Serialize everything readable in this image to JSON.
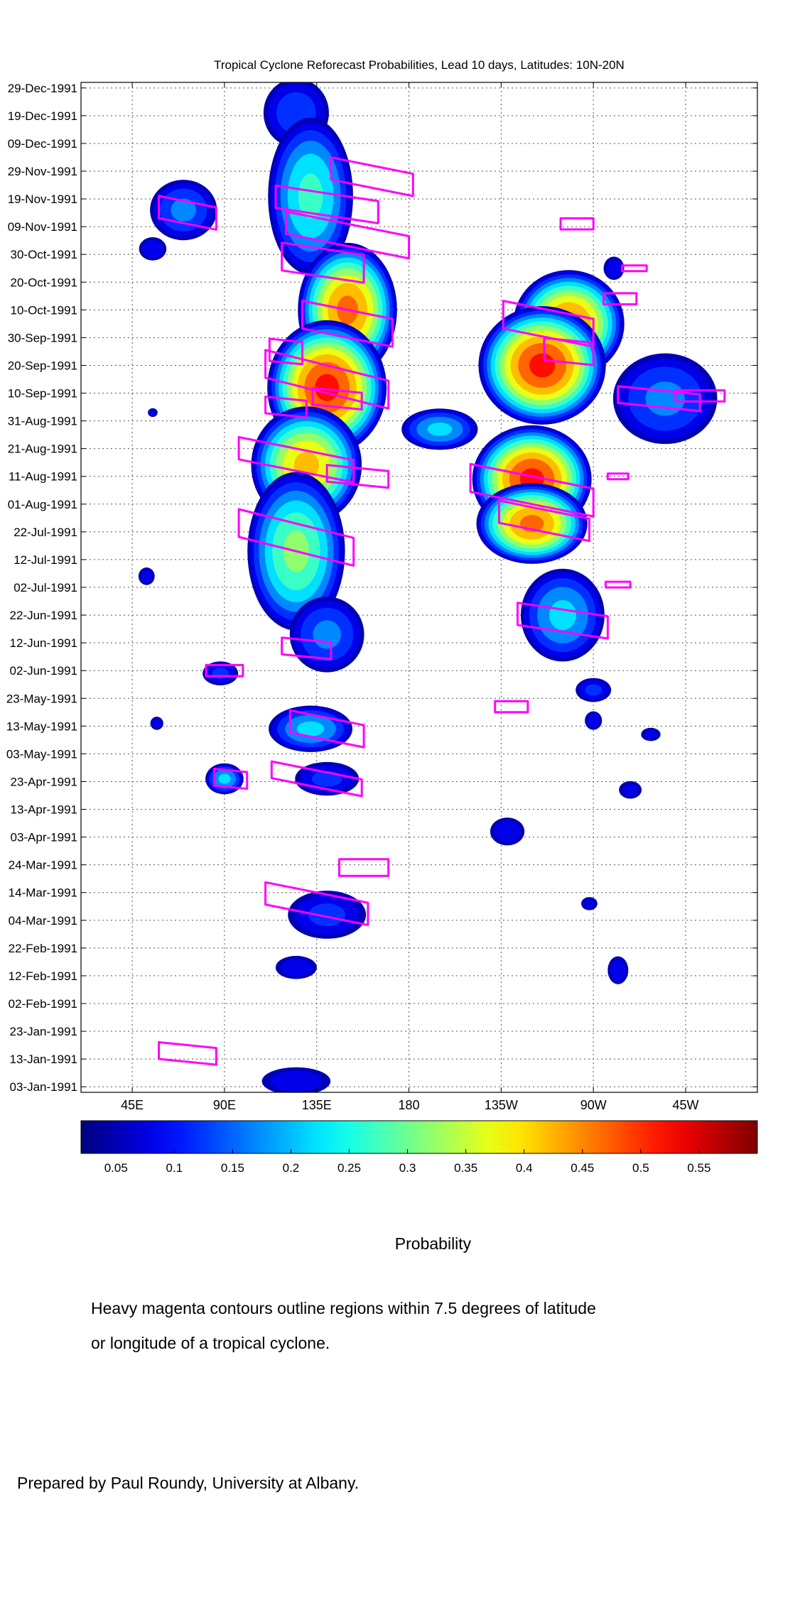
{
  "chart_data": {
    "type": "heatmap",
    "title": "Tropical Cyclone Reforecast Probabilities, Lead 10 days, Latitudes: 10N-20N",
    "x_axis": {
      "tick_labels": [
        "45E",
        "90E",
        "135E",
        "180",
        "135W",
        "90W",
        "45W"
      ],
      "tick_values_deg_east": [
        45,
        90,
        135,
        180,
        225,
        270,
        315
      ],
      "range_deg_east": [
        20,
        350
      ],
      "grid": true
    },
    "y_axis": {
      "tick_labels": [
        "29-Dec-1991",
        "19-Dec-1991",
        "09-Dec-1991",
        "29-Nov-1991",
        "19-Nov-1991",
        "09-Nov-1991",
        "30-Oct-1991",
        "20-Oct-1991",
        "10-Oct-1991",
        "30-Sep-1991",
        "20-Sep-1991",
        "10-Sep-1991",
        "31-Aug-1991",
        "21-Aug-1991",
        "11-Aug-1991",
        "01-Aug-1991",
        "22-Jul-1991",
        "12-Jul-1991",
        "02-Jul-1991",
        "22-Jun-1991",
        "12-Jun-1991",
        "02-Jun-1991",
        "23-May-1991",
        "13-May-1991",
        "03-May-1991",
        "23-Apr-1991",
        "13-Apr-1991",
        "03-Apr-1991",
        "24-Mar-1991",
        "14-Mar-1991",
        "04-Mar-1991",
        "22-Feb-1991",
        "12-Feb-1991",
        "02-Feb-1991",
        "23-Jan-1991",
        "13-Jan-1991",
        "03-Jan-1991"
      ],
      "range": [
        "01-Jan-1991",
        "31-Dec-1991"
      ],
      "direction": "time increases upward",
      "grid": true
    },
    "colorbar": {
      "label": "Probability",
      "tick_labels": [
        "0.05",
        "0.1",
        "0.15",
        "0.2",
        "0.25",
        "0.3",
        "0.35",
        "0.4",
        "0.45",
        "0.5",
        "0.55"
      ],
      "tick_values": [
        0.05,
        0.1,
        0.15,
        0.2,
        0.25,
        0.3,
        0.35,
        0.4,
        0.45,
        0.5,
        0.55
      ],
      "range": [
        0.02,
        0.6
      ],
      "colormap": "jet",
      "palette": [
        "#00007f",
        "#0000ff",
        "#007fff",
        "#00ffff",
        "#7fff7f",
        "#ffff00",
        "#ff7f00",
        "#ff0000",
        "#7f0000"
      ]
    },
    "contour_color": "#ff00ff",
    "probability_regions": [
      {
        "lon": 125,
        "date": "20-Dec-1991",
        "lon_halfwidth": 18,
        "date_halfwidth_days": 14,
        "peak": 0.12
      },
      {
        "lon": 132,
        "date": "20-Nov-1991",
        "lon_halfwidth": 22,
        "date_halfwidth_days": 30,
        "peak": 0.25
      },
      {
        "lon": 70,
        "date": "15-Nov-1991",
        "lon_halfwidth": 18,
        "date_halfwidth_days": 12,
        "peak": 0.15
      },
      {
        "lon": 55,
        "date": "01-Nov-1991",
        "lon_halfwidth": 8,
        "date_halfwidth_days": 5,
        "peak": 0.08
      },
      {
        "lon": 150,
        "date": "10-Oct-1991",
        "lon_halfwidth": 25,
        "date_halfwidth_days": 25,
        "peak": 0.45
      },
      {
        "lon": 140,
        "date": "12-Sep-1991",
        "lon_halfwidth": 30,
        "date_halfwidth_days": 25,
        "peak": 0.5
      },
      {
        "lon": 130,
        "date": "15-Aug-1991",
        "lon_halfwidth": 28,
        "date_halfwidth_days": 22,
        "peak": 0.4
      },
      {
        "lon": 125,
        "date": "15-Jul-1991",
        "lon_halfwidth": 25,
        "date_halfwidth_days": 30,
        "peak": 0.3
      },
      {
        "lon": 140,
        "date": "15-Jun-1991",
        "lon_halfwidth": 20,
        "date_halfwidth_days": 15,
        "peak": 0.15
      },
      {
        "lon": 195,
        "date": "28-Aug-1991",
        "lon_halfwidth": 20,
        "date_halfwidth_days": 8,
        "peak": 0.2
      },
      {
        "lon": 258,
        "date": "05-Oct-1991",
        "lon_halfwidth": 28,
        "date_halfwidth_days": 20,
        "peak": 0.45
      },
      {
        "lon": 245,
        "date": "20-Sep-1991",
        "lon_halfwidth": 32,
        "date_halfwidth_days": 22,
        "peak": 0.5
      },
      {
        "lon": 240,
        "date": "10-Aug-1991",
        "lon_halfwidth": 30,
        "date_halfwidth_days": 20,
        "peak": 0.5
      },
      {
        "lon": 240,
        "date": "25-Jul-1991",
        "lon_halfwidth": 28,
        "date_halfwidth_days": 15,
        "peak": 0.45
      },
      {
        "lon": 255,
        "date": "22-Jun-1991",
        "lon_halfwidth": 22,
        "date_halfwidth_days": 18,
        "peak": 0.2
      },
      {
        "lon": 305,
        "date": "08-Sep-1991",
        "lon_halfwidth": 28,
        "date_halfwidth_days": 18,
        "peak": 0.15
      },
      {
        "lon": 132,
        "date": "12-May-1991",
        "lon_halfwidth": 22,
        "date_halfwidth_days": 9,
        "peak": 0.2
      },
      {
        "lon": 88,
        "date": "01-Jun-1991",
        "lon_halfwidth": 10,
        "date_halfwidth_days": 5,
        "peak": 0.1
      },
      {
        "lon": 90,
        "date": "24-Apr-1991",
        "lon_halfwidth": 10,
        "date_halfwidth_days": 6,
        "peak": 0.2
      },
      {
        "lon": 140,
        "date": "24-Apr-1991",
        "lon_halfwidth": 18,
        "date_halfwidth_days": 7,
        "peak": 0.1
      },
      {
        "lon": 140,
        "date": "06-Mar-1991",
        "lon_halfwidth": 22,
        "date_halfwidth_days": 10,
        "peak": 0.1
      },
      {
        "lon": 125,
        "date": "15-Feb-1991",
        "lon_halfwidth": 12,
        "date_halfwidth_days": 5,
        "peak": 0.08
      },
      {
        "lon": 125,
        "date": "05-Jan-1991",
        "lon_halfwidth": 20,
        "date_halfwidth_days": 6,
        "peak": 0.08
      },
      {
        "lon": 270,
        "date": "15-May-1991",
        "lon_halfwidth": 5,
        "date_halfwidth_days": 4,
        "peak": 0.08
      },
      {
        "lon": 270,
        "date": "26-May-1991",
        "lon_halfwidth": 10,
        "date_halfwidth_days": 5,
        "peak": 0.1
      },
      {
        "lon": 228,
        "date": "05-Apr-1991",
        "lon_halfwidth": 10,
        "date_halfwidth_days": 6,
        "peak": 0.08
      },
      {
        "lon": 282,
        "date": "14-Feb-1991",
        "lon_halfwidth": 6,
        "date_halfwidth_days": 6,
        "peak": 0.08
      },
      {
        "lon": 288,
        "date": "20-Apr-1991",
        "lon_halfwidth": 7,
        "date_halfwidth_days": 4,
        "peak": 0.06
      },
      {
        "lon": 298,
        "date": "10-May-1991",
        "lon_halfwidth": 6,
        "date_halfwidth_days": 3,
        "peak": 0.06
      },
      {
        "lon": 268,
        "date": "10-Mar-1991",
        "lon_halfwidth": 5,
        "date_halfwidth_days": 3,
        "peak": 0.06
      },
      {
        "lon": 280,
        "date": "25-Oct-1991",
        "lon_halfwidth": 6,
        "date_halfwidth_days": 5,
        "peak": 0.08
      },
      {
        "lon": 52,
        "date": "06-Jul-1991",
        "lon_halfwidth": 5,
        "date_halfwidth_days": 4,
        "peak": 0.06
      },
      {
        "lon": 57,
        "date": "14-May-1991",
        "lon_halfwidth": 4,
        "date_halfwidth_days": 3,
        "peak": 0.06
      },
      {
        "lon": 55,
        "date": "03-Sep-1991",
        "lon_halfwidth": 3,
        "date_halfwidth_days": 2,
        "peak": 0.06
      }
    ],
    "tropical_cyclone_contours": [
      {
        "lon": 162,
        "date": "27-Nov-1991",
        "lon_halfwidth": 20,
        "date_halfwidth_days": 4,
        "tilt": 0.2
      },
      {
        "lon": 140,
        "date": "17-Nov-1991",
        "lon_halfwidth": 25,
        "date_halfwidth_days": 4,
        "tilt": 0.15
      },
      {
        "lon": 150,
        "date": "06-Nov-1991",
        "lon_halfwidth": 30,
        "date_halfwidth_days": 4,
        "tilt": 0.2
      },
      {
        "lon": 72,
        "date": "14-Nov-1991",
        "lon_halfwidth": 14,
        "date_halfwidth_days": 4,
        "tilt": 0.2
      },
      {
        "lon": 138,
        "date": "27-Oct-1991",
        "lon_halfwidth": 20,
        "date_halfwidth_days": 5,
        "tilt": 0.15
      },
      {
        "lon": 150,
        "date": "05-Oct-1991",
        "lon_halfwidth": 22,
        "date_halfwidth_days": 5,
        "tilt": 0.2
      },
      {
        "lon": 140,
        "date": "15-Sep-1991",
        "lon_halfwidth": 30,
        "date_halfwidth_days": 5,
        "tilt": 0.25
      },
      {
        "lon": 120,
        "date": "25-Sep-1991",
        "lon_halfwidth": 8,
        "date_halfwidth_days": 4,
        "tilt": 0.1
      },
      {
        "lon": 120,
        "date": "05-Sep-1991",
        "lon_halfwidth": 10,
        "date_halfwidth_days": 3,
        "tilt": 0.1
      },
      {
        "lon": 145,
        "date": "08-Sep-1991",
        "lon_halfwidth": 12,
        "date_halfwidth_days": 3,
        "tilt": 0.1
      },
      {
        "lon": 125,
        "date": "17-Aug-1991",
        "lon_halfwidth": 28,
        "date_halfwidth_days": 4,
        "tilt": 0.2
      },
      {
        "lon": 155,
        "date": "11-Aug-1991",
        "lon_halfwidth": 15,
        "date_halfwidth_days": 3,
        "tilt": 0.1
      },
      {
        "lon": 125,
        "date": "20-Jul-1991",
        "lon_halfwidth": 28,
        "date_halfwidth_days": 5,
        "tilt": 0.25
      },
      {
        "lon": 130,
        "date": "10-Jun-1991",
        "lon_halfwidth": 12,
        "date_halfwidth_days": 3,
        "tilt": 0.1
      },
      {
        "lon": 248,
        "date": "05-Oct-1991",
        "lon_halfwidth": 22,
        "date_halfwidth_days": 5,
        "tilt": 0.2
      },
      {
        "lon": 258,
        "date": "25-Sep-1991",
        "lon_halfwidth": 12,
        "date_halfwidth_days": 4,
        "tilt": 0.1
      },
      {
        "lon": 283,
        "date": "14-Oct-1991",
        "lon_halfwidth": 8,
        "date_halfwidth_days": 2,
        "tilt": 0.0
      },
      {
        "lon": 290,
        "date": "25-Oct-1991",
        "lon_halfwidth": 6,
        "date_halfwidth_days": 1,
        "tilt": 0.0
      },
      {
        "lon": 302,
        "date": "08-Sep-1991",
        "lon_halfwidth": 20,
        "date_halfwidth_days": 3,
        "tilt": 0.1
      },
      {
        "lon": 322,
        "date": "09-Sep-1991",
        "lon_halfwidth": 12,
        "date_halfwidth_days": 2,
        "tilt": 0.0
      },
      {
        "lon": 240,
        "date": "06-Aug-1991",
        "lon_halfwidth": 30,
        "date_halfwidth_days": 5,
        "tilt": 0.2
      },
      {
        "lon": 246,
        "date": "26-Jul-1991",
        "lon_halfwidth": 22,
        "date_halfwidth_days": 4,
        "tilt": 0.2
      },
      {
        "lon": 255,
        "date": "20-Jun-1991",
        "lon_halfwidth": 22,
        "date_halfwidth_days": 4,
        "tilt": 0.15
      },
      {
        "lon": 282,
        "date": "03-Jul-1991",
        "lon_halfwidth": 6,
        "date_halfwidth_days": 1,
        "tilt": 0.0
      },
      {
        "lon": 282,
        "date": "11-Aug-1991",
        "lon_halfwidth": 5,
        "date_halfwidth_days": 1,
        "tilt": 0.0
      },
      {
        "lon": 262,
        "date": "10-Nov-1991",
        "lon_halfwidth": 8,
        "date_halfwidth_days": 2,
        "tilt": 0.0
      },
      {
        "lon": 230,
        "date": "20-May-1991",
        "lon_halfwidth": 8,
        "date_halfwidth_days": 2,
        "tilt": 0.0
      },
      {
        "lon": 140,
        "date": "12-May-1991",
        "lon_halfwidth": 18,
        "date_halfwidth_days": 4,
        "tilt": 0.2
      },
      {
        "lon": 90,
        "date": "02-Jun-1991",
        "lon_halfwidth": 9,
        "date_halfwidth_days": 2,
        "tilt": 0.0
      },
      {
        "lon": 93,
        "date": "24-Apr-1991",
        "lon_halfwidth": 8,
        "date_halfwidth_days": 3,
        "tilt": 0.1
      },
      {
        "lon": 135,
        "date": "24-Apr-1991",
        "lon_halfwidth": 22,
        "date_halfwidth_days": 3,
        "tilt": 0.2
      },
      {
        "lon": 158,
        "date": "23-Mar-1991",
        "lon_halfwidth": 12,
        "date_halfwidth_days": 3,
        "tilt": 0.0
      },
      {
        "lon": 135,
        "date": "10-Mar-1991",
        "lon_halfwidth": 25,
        "date_halfwidth_days": 4,
        "tilt": 0.2
      },
      {
        "lon": 72,
        "date": "15-Jan-1991",
        "lon_halfwidth": 14,
        "date_halfwidth_days": 3,
        "tilt": 0.1
      }
    ]
  },
  "caption": {
    "line1": "Heavy magenta contours outline regions within 7.5 degrees of latitude",
    "line2": "or longitude of a tropical cyclone."
  },
  "credit": "Prepared by Paul Roundy, University at Albany."
}
